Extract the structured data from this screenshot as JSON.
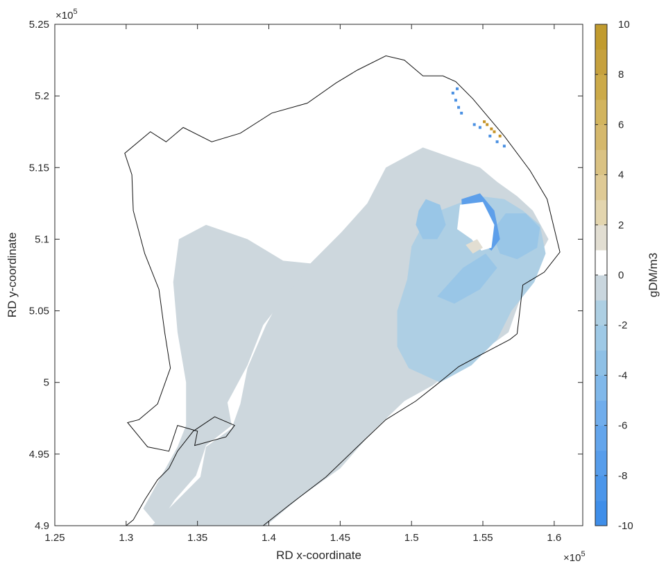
{
  "chart_data": {
    "type": "heatmap",
    "title": "",
    "xlabel": "RD x-coordinate",
    "ylabel": "RD y-coordinate",
    "x_multiplier": "×10",
    "x_multiplier_exp": "5",
    "y_multiplier": "×10",
    "y_multiplier_exp": "5",
    "xlim": [
      1.25,
      1.62
    ],
    "ylim": [
      4.9,
      5.25
    ],
    "x_scale": 100000,
    "y_scale": 100000,
    "x_ticks": [
      1.25,
      1.3,
      1.35,
      1.4,
      1.45,
      1.5,
      1.55,
      1.6
    ],
    "x_tick_labels": [
      "1.25",
      "1.3",
      "1.35",
      "1.4",
      "1.45",
      "1.5",
      "1.55",
      "1.6"
    ],
    "y_ticks": [
      4.9,
      4.95,
      5.0,
      5.05,
      5.1,
      5.15,
      5.2,
      5.25
    ],
    "y_tick_labels": [
      "4.9",
      "4.95",
      "5",
      "5.05",
      "5.1",
      "5.15",
      "5.2",
      "5.25"
    ],
    "grid": false,
    "colorbar": {
      "label": "gDM/m3",
      "range": [
        -10,
        10
      ],
      "levels": [
        -10,
        -9,
        -8,
        -7,
        -6,
        -5,
        -4,
        -3,
        -2,
        -1,
        0,
        1,
        2,
        3,
        4,
        5,
        6,
        7,
        8,
        9,
        10
      ],
      "colors": [
        "#3f8ee9",
        "#4b96ea",
        "#579deb",
        "#63a5ec",
        "#70adec",
        "#80b8ea",
        "#8ec0e6",
        "#9ec9e6",
        "#adcfe3",
        "#c9d6de",
        "#ffffff",
        "#e2ded2",
        "#e3d5ae",
        "#dfca95",
        "#dac283",
        "#d5b86c",
        "#d2b45e",
        "#ccaa49",
        "#c6a13e",
        "#c19b2e"
      ],
      "ticks": [
        -10,
        -8,
        -6,
        -4,
        -2,
        0,
        2,
        4,
        6,
        8,
        10
      ],
      "tick_labels": [
        "-10",
        "-8",
        "-6",
        "-4",
        "-2",
        "0",
        "2",
        "4",
        "6",
        "8",
        "10"
      ]
    },
    "boundary": [
      [
        1.3,
        4.9
      ],
      [
        1.305,
        4.904
      ],
      [
        1.313,
        4.918
      ],
      [
        1.322,
        4.932
      ],
      [
        1.33,
        4.94
      ],
      [
        1.336,
        4.952
      ],
      [
        1.347,
        4.966
      ],
      [
        1.362,
        4.976
      ],
      [
        1.376,
        4.97
      ],
      [
        1.37,
        4.962
      ],
      [
        1.348,
        4.956
      ],
      [
        1.35,
        4.966
      ],
      [
        1.336,
        4.97
      ],
      [
        1.33,
        4.952
      ],
      [
        1.315,
        4.955
      ],
      [
        1.301,
        4.972
      ],
      [
        1.309,
        4.974
      ],
      [
        1.322,
        4.985
      ],
      [
        1.331,
        5.01
      ],
      [
        1.327,
        5.035
      ],
      [
        1.323,
        5.065
      ],
      [
        1.313,
        5.09
      ],
      [
        1.305,
        5.12
      ],
      [
        1.304,
        5.145
      ],
      [
        1.299,
        5.16
      ],
      [
        1.317,
        5.175
      ],
      [
        1.328,
        5.168
      ],
      [
        1.34,
        5.178
      ],
      [
        1.36,
        5.168
      ],
      [
        1.38,
        5.174
      ],
      [
        1.402,
        5.188
      ],
      [
        1.427,
        5.195
      ],
      [
        1.447,
        5.209
      ],
      [
        1.462,
        5.218
      ],
      [
        1.482,
        5.228
      ],
      [
        1.495,
        5.225
      ],
      [
        1.508,
        5.214
      ],
      [
        1.522,
        5.214
      ],
      [
        1.531,
        5.21
      ],
      [
        1.543,
        5.198
      ],
      [
        1.565,
        5.172
      ],
      [
        1.583,
        5.148
      ],
      [
        1.595,
        5.128
      ],
      [
        1.604,
        5.091
      ],
      [
        1.593,
        5.077
      ],
      [
        1.578,
        5.068
      ],
      [
        1.574,
        5.034
      ],
      [
        1.569,
        5.03
      ],
      [
        1.548,
        5.019
      ],
      [
        1.533,
        5.011
      ],
      [
        1.517,
        4.998
      ],
      [
        1.503,
        4.987
      ],
      [
        1.482,
        4.974
      ],
      [
        1.462,
        4.955
      ],
      [
        1.44,
        4.934
      ],
      [
        1.415,
        4.915
      ],
      [
        1.396,
        4.9
      ]
    ],
    "series": [
      {
        "name": "outer",
        "value": -1.5,
        "color": "#cdd7dd",
        "polygon": [
          [
            1.318,
            4.9
          ],
          [
            1.338,
            4.92
          ],
          [
            1.352,
            4.934
          ],
          [
            1.356,
            4.955
          ],
          [
            1.374,
            4.968
          ],
          [
            1.38,
            4.985
          ],
          [
            1.385,
            5.01
          ],
          [
            1.398,
            5.04
          ],
          [
            1.41,
            5.062
          ],
          [
            1.428,
            5.082
          ],
          [
            1.451,
            5.105
          ],
          [
            1.469,
            5.125
          ],
          [
            1.482,
            5.15
          ],
          [
            1.508,
            5.164
          ],
          [
            1.548,
            5.15
          ],
          [
            1.56,
            5.14
          ],
          [
            1.574,
            5.13
          ],
          [
            1.585,
            5.12
          ],
          [
            1.596,
            5.1
          ],
          [
            1.585,
            5.08
          ],
          [
            1.575,
            5.055
          ],
          [
            1.568,
            5.035
          ],
          [
            1.55,
            5.022
          ],
          [
            1.53,
            5.01
          ],
          [
            1.515,
            4.998
          ],
          [
            1.495,
            4.987
          ],
          [
            1.472,
            4.965
          ],
          [
            1.45,
            4.94
          ],
          [
            1.422,
            4.92
          ],
          [
            1.398,
            4.9
          ]
        ]
      },
      {
        "name": "outer-west",
        "value": -1.5,
        "color": "#cdd7dd",
        "polygon": [
          [
            1.322,
            4.9
          ],
          [
            1.334,
            4.918
          ],
          [
            1.349,
            4.935
          ],
          [
            1.356,
            4.956
          ],
          [
            1.374,
            4.97
          ],
          [
            1.371,
            4.986
          ],
          [
            1.385,
            5.012
          ],
          [
            1.396,
            5.04
          ],
          [
            1.43,
            5.083
          ],
          [
            1.41,
            5.085
          ],
          [
            1.385,
            5.1
          ],
          [
            1.356,
            5.11
          ],
          [
            1.337,
            5.1
          ],
          [
            1.333,
            5.07
          ],
          [
            1.336,
            5.035
          ],
          [
            1.342,
            5.0
          ],
          [
            1.342,
            4.97
          ],
          [
            1.336,
            4.955
          ],
          [
            1.322,
            4.93
          ],
          [
            1.312,
            4.912
          ]
        ]
      },
      {
        "name": "mid",
        "value": -2.5,
        "color": "#aecfe4",
        "polygon": [
          [
            1.497,
            5.072
          ],
          [
            1.49,
            5.05
          ],
          [
            1.49,
            5.025
          ],
          [
            1.498,
            5.01
          ],
          [
            1.52,
            5.0
          ],
          [
            1.542,
            5.012
          ],
          [
            1.56,
            5.03
          ],
          [
            1.57,
            5.05
          ],
          [
            1.586,
            5.07
          ],
          [
            1.594,
            5.09
          ],
          [
            1.59,
            5.11
          ],
          [
            1.578,
            5.12
          ],
          [
            1.565,
            5.128
          ],
          [
            1.548,
            5.13
          ],
          [
            1.533,
            5.125
          ],
          [
            1.52,
            5.12
          ],
          [
            1.508,
            5.11
          ],
          [
            1.5,
            5.095
          ]
        ]
      },
      {
        "name": "deep-west",
        "value": -3.5,
        "color": "#99c6e7",
        "polygon": [
          [
            1.505,
            5.12
          ],
          [
            1.51,
            5.128
          ],
          [
            1.52,
            5.124
          ],
          [
            1.524,
            5.11
          ],
          [
            1.518,
            5.1
          ],
          [
            1.508,
            5.1
          ],
          [
            1.503,
            5.11
          ]
        ]
      },
      {
        "name": "deep-east",
        "value": -3.5,
        "color": "#99c6e7",
        "polygon": [
          [
            1.556,
            5.105
          ],
          [
            1.566,
            5.118
          ],
          [
            1.58,
            5.118
          ],
          [
            1.59,
            5.108
          ],
          [
            1.588,
            5.094
          ],
          [
            1.574,
            5.086
          ],
          [
            1.562,
            5.09
          ]
        ]
      },
      {
        "name": "deep-south",
        "value": -3.5,
        "color": "#99c6e7",
        "polygon": [
          [
            1.518,
            5.06
          ],
          [
            1.536,
            5.08
          ],
          [
            1.552,
            5.09
          ],
          [
            1.56,
            5.08
          ],
          [
            1.548,
            5.065
          ],
          [
            1.53,
            5.055
          ]
        ]
      },
      {
        "name": "core",
        "value": -6.5,
        "color": "#5d9fea",
        "polygon": [
          [
            1.535,
            5.128
          ],
          [
            1.548,
            5.132
          ],
          [
            1.558,
            5.12
          ],
          [
            1.562,
            5.1
          ],
          [
            1.556,
            5.092
          ],
          [
            1.545,
            5.1
          ],
          [
            1.536,
            5.11
          ]
        ]
      },
      {
        "name": "harbour",
        "value": 0,
        "color": "#ffffff",
        "polygon": [
          [
            1.534,
            5.124
          ],
          [
            1.55,
            5.126
          ],
          [
            1.558,
            5.11
          ],
          [
            1.556,
            5.094
          ],
          [
            1.549,
            5.092
          ],
          [
            1.542,
            5.1
          ],
          [
            1.532,
            5.107
          ]
        ]
      },
      {
        "name": "harbour-sand",
        "value": 1.5,
        "color": "#e2ded2",
        "polygon": [
          [
            1.538,
            5.096
          ],
          [
            1.546,
            5.1
          ],
          [
            1.55,
            5.094
          ],
          [
            1.543,
            5.09
          ]
        ]
      },
      {
        "name": "dots-blue",
        "value": -5,
        "color": "#4a90e2",
        "points": [
          [
            1.529,
            5.202
          ],
          [
            1.531,
            5.197
          ],
          [
            1.533,
            5.192
          ],
          [
            1.535,
            5.188
          ],
          [
            1.544,
            5.18
          ],
          [
            1.548,
            5.178
          ],
          [
            1.555,
            5.172
          ],
          [
            1.56,
            5.168
          ],
          [
            1.565,
            5.165
          ],
          [
            1.532,
            5.205
          ]
        ]
      },
      {
        "name": "dots-gold",
        "value": 9,
        "color": "#c59327",
        "points": [
          [
            1.551,
            5.182
          ],
          [
            1.553,
            5.18
          ],
          [
            1.556,
            5.177
          ],
          [
            1.558,
            5.175
          ],
          [
            1.562,
            5.172
          ]
        ]
      }
    ]
  }
}
